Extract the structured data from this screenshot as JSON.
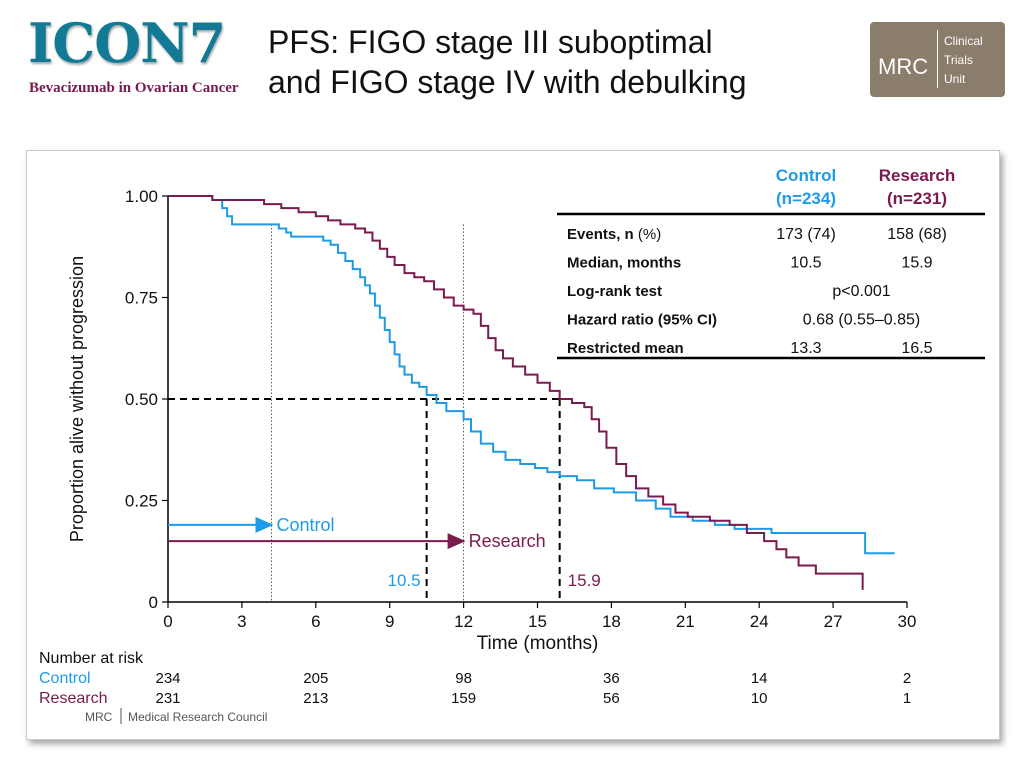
{
  "header": {
    "logo_text": "ICON7",
    "logo_subtitle": "Bevacizumab in Ovarian Cancer",
    "title_line1": "PFS: FIGO stage III suboptimal",
    "title_line2": "and FIGO stage IV with debulking",
    "mrc_badge": {
      "big": "MRC",
      "lines": [
        "Clinical",
        "Trials",
        "Unit"
      ]
    }
  },
  "footer_logo": {
    "abbr": "MRC",
    "name": "Medical Research Council"
  },
  "colors": {
    "control": "#1e9be6",
    "research": "#7a1a4e",
    "text": "#111111"
  },
  "chart_data": {
    "type": "line",
    "step": true,
    "xlabel": "Time (months)",
    "ylabel": "Proportion alive without progression",
    "xlim": [
      0,
      30
    ],
    "ylim": [
      0,
      1
    ],
    "xticks": [
      0,
      3,
      6,
      9,
      12,
      15,
      18,
      21,
      24,
      27,
      30
    ],
    "yticks": [
      0,
      0.25,
      0.5,
      0.75,
      1.0
    ],
    "ytick_labels": [
      "0",
      "0.25",
      "0.50",
      "0.75",
      "1.00"
    ],
    "series": [
      {
        "name": "Control",
        "color": "#1e9be6",
        "points": [
          [
            0,
            1.0
          ],
          [
            1.8,
            0.99
          ],
          [
            2.2,
            0.97
          ],
          [
            2.4,
            0.95
          ],
          [
            2.6,
            0.93
          ],
          [
            3.5,
            0.93
          ],
          [
            4.5,
            0.92
          ],
          [
            4.8,
            0.91
          ],
          [
            5.0,
            0.9
          ],
          [
            5.8,
            0.9
          ],
          [
            6.3,
            0.89
          ],
          [
            6.6,
            0.88
          ],
          [
            6.9,
            0.86
          ],
          [
            7.2,
            0.84
          ],
          [
            7.5,
            0.82
          ],
          [
            7.8,
            0.8
          ],
          [
            8.0,
            0.78
          ],
          [
            8.2,
            0.76
          ],
          [
            8.4,
            0.73
          ],
          [
            8.6,
            0.7
          ],
          [
            8.8,
            0.67
          ],
          [
            9.0,
            0.64
          ],
          [
            9.2,
            0.61
          ],
          [
            9.4,
            0.58
          ],
          [
            9.6,
            0.56
          ],
          [
            9.9,
            0.54
          ],
          [
            10.2,
            0.53
          ],
          [
            10.5,
            0.51
          ],
          [
            10.9,
            0.49
          ],
          [
            11.3,
            0.47
          ],
          [
            12.0,
            0.45
          ],
          [
            12.3,
            0.42
          ],
          [
            12.7,
            0.39
          ],
          [
            13.2,
            0.37
          ],
          [
            13.7,
            0.35
          ],
          [
            14.3,
            0.34
          ],
          [
            14.9,
            0.33
          ],
          [
            15.4,
            0.32
          ],
          [
            15.9,
            0.31
          ],
          [
            16.6,
            0.3
          ],
          [
            17.3,
            0.28
          ],
          [
            18.1,
            0.27
          ],
          [
            19.0,
            0.25
          ],
          [
            19.8,
            0.23
          ],
          [
            20.4,
            0.21
          ],
          [
            21.3,
            0.2
          ],
          [
            22.2,
            0.19
          ],
          [
            23.0,
            0.18
          ],
          [
            24.5,
            0.17
          ],
          [
            25.5,
            0.17
          ],
          [
            28.3,
            0.17
          ],
          [
            28.3,
            0.12
          ],
          [
            29.5,
            0.12
          ]
        ]
      },
      {
        "name": "Research",
        "color": "#7a1a4e",
        "points": [
          [
            0,
            1.0
          ],
          [
            1.6,
            1.0
          ],
          [
            1.8,
            0.99
          ],
          [
            3.5,
            0.99
          ],
          [
            3.9,
            0.98
          ],
          [
            4.6,
            0.97
          ],
          [
            5.3,
            0.96
          ],
          [
            6.0,
            0.95
          ],
          [
            6.5,
            0.94
          ],
          [
            7.0,
            0.93
          ],
          [
            7.6,
            0.92
          ],
          [
            8.0,
            0.91
          ],
          [
            8.3,
            0.89
          ],
          [
            8.6,
            0.87
          ],
          [
            8.9,
            0.85
          ],
          [
            9.2,
            0.83
          ],
          [
            9.6,
            0.81
          ],
          [
            10.0,
            0.8
          ],
          [
            10.4,
            0.79
          ],
          [
            10.8,
            0.77
          ],
          [
            11.2,
            0.75
          ],
          [
            11.6,
            0.73
          ],
          [
            12.0,
            0.72
          ],
          [
            12.4,
            0.71
          ],
          [
            12.7,
            0.68
          ],
          [
            13.0,
            0.65
          ],
          [
            13.3,
            0.62
          ],
          [
            13.6,
            0.6
          ],
          [
            14.0,
            0.58
          ],
          [
            14.5,
            0.56
          ],
          [
            15.0,
            0.54
          ],
          [
            15.5,
            0.52
          ],
          [
            15.9,
            0.5
          ],
          [
            16.4,
            0.49
          ],
          [
            16.9,
            0.48
          ],
          [
            17.2,
            0.45
          ],
          [
            17.5,
            0.42
          ],
          [
            17.8,
            0.38
          ],
          [
            18.2,
            0.34
          ],
          [
            18.6,
            0.31
          ],
          [
            19.0,
            0.28
          ],
          [
            19.5,
            0.26
          ],
          [
            20.1,
            0.24
          ],
          [
            20.6,
            0.22
          ],
          [
            21.1,
            0.21
          ],
          [
            22.0,
            0.2
          ],
          [
            22.8,
            0.19
          ],
          [
            23.5,
            0.17
          ],
          [
            24.2,
            0.15
          ],
          [
            24.7,
            0.13
          ],
          [
            25.1,
            0.11
          ],
          [
            25.6,
            0.09
          ],
          [
            26.3,
            0.07
          ],
          [
            28.2,
            0.07
          ],
          [
            28.2,
            0.03
          ]
        ]
      }
    ],
    "medians": [
      {
        "series": "Control",
        "x": 10.5,
        "label": "10.5"
      },
      {
        "series": "Research",
        "x": 15.9,
        "label": "15.9"
      }
    ],
    "reference_lines": [
      4.2,
      12.0
    ],
    "arrows": [
      {
        "label": "Control",
        "y": 0.19,
        "x_to": 4.2
      },
      {
        "label": "Research",
        "y": 0.15,
        "x_to": 12.0
      }
    ],
    "stats_table": {
      "columns": [
        {
          "name": "Control",
          "n": "(n=234)"
        },
        {
          "name": "Research",
          "n": "(n=231)"
        }
      ],
      "rows": [
        {
          "label_bold": "Events, n",
          "label_rest": " (%)",
          "control": "173 (74)",
          "research": "158 (68)"
        },
        {
          "label_bold": "Median, months",
          "label_rest": "",
          "control": "10.5",
          "research": "15.9"
        },
        {
          "label_bold": "Log-rank test",
          "label_rest": "",
          "span": "p<0.001"
        },
        {
          "label_bold": "Hazard ratio (95% CI)",
          "label_rest": "",
          "span": "0.68 (0.55–0.85)"
        },
        {
          "label_bold": "Restricted mean",
          "label_rest": "",
          "control": "13.3",
          "research": "16.5"
        }
      ]
    },
    "risk_table": {
      "title": "Number at risk",
      "times": [
        0,
        6,
        12,
        18,
        24,
        30
      ],
      "rows": [
        {
          "name": "Control",
          "values": [
            "234",
            "205",
            "98",
            "36",
            "14",
            "2"
          ]
        },
        {
          "name": "Research",
          "values": [
            "231",
            "213",
            "159",
            "56",
            "10",
            "1"
          ]
        }
      ]
    }
  }
}
